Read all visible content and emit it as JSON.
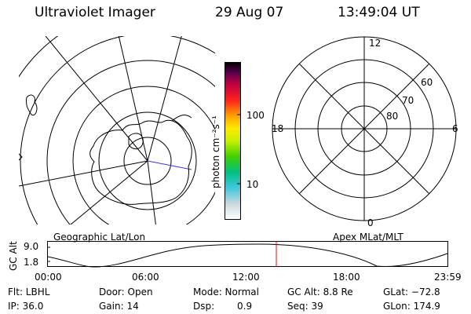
{
  "header": {
    "title": "Ultraviolet Imager",
    "date": "29 Aug 07",
    "time": "13:49:04 UT"
  },
  "colorbar": {
    "unit_label": "photon cm⁻²s⁻¹",
    "tick_100": "100",
    "tick_10": "10"
  },
  "left_panel": {
    "caption": "Geographic Lat/Lon"
  },
  "right_panel": {
    "caption": "Apex MLat/MLT",
    "mlt_labels": {
      "top": "12",
      "bottom": "0",
      "left": "18",
      "right": "6"
    },
    "mlat_labels": [
      "60",
      "70",
      "80"
    ]
  },
  "timeline": {
    "ylabel": "GC Alt",
    "ytick_top": "9.0",
    "ytick_bottom": "1.8",
    "xticks": [
      "00:00",
      "06:00",
      "12:00",
      "18:00",
      "23:59"
    ],
    "marker_color": "#ff0000"
  },
  "info": {
    "row1": {
      "flt": "Flt: LBHL",
      "door": "Door: Open",
      "mode": "Mode: Normal",
      "gcalt": "GC Alt: 8.8 Re",
      "glat": "GLat: −72.8"
    },
    "row2": {
      "ip": "IP: 36.0",
      "gain": "Gain: 14",
      "dsp_label": "Dsp:",
      "dsp_value": "0.9",
      "seq": "Seq: 39",
      "glon": "GLon: 174.9"
    }
  }
}
